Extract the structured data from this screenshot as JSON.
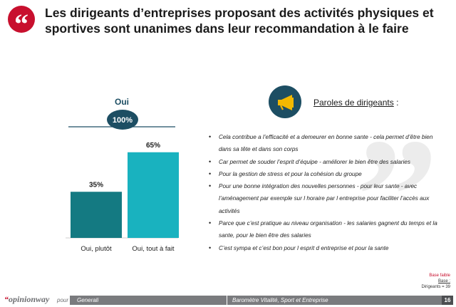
{
  "header": {
    "quote_mark": "“",
    "title": "Les dirigeants d’entreprises proposant des activités physiques et sportives sont unanimes dans leur recommandation à le faire"
  },
  "chart_data": {
    "type": "bar",
    "group_label": "Oui",
    "total_label": "100%",
    "total_value": 100,
    "categories": [
      "Oui, plutôt",
      "Oui, tout à fait"
    ],
    "values": [
      35,
      65
    ],
    "value_labels": [
      "35%",
      "65%"
    ],
    "colors": [
      "#147a82",
      "#19b2bf"
    ],
    "ylim": [
      0,
      100
    ]
  },
  "verbatims": {
    "title": "Paroles de dirigeants",
    "title_suffix": " :",
    "quote_deco": "”",
    "items": [
      "Cela contribue a l’efficacité et a demeurer en bonne sante - cela permet d’être bien dans sa tête et dans son corps",
      "Car permet de souder l’esprit d’équipe - améliorer le bien être des salaries",
      "Pour la gestion de stress et pour la cohésion du groupe",
      "Pour une bonne intégration des nouvelles personnes - pour leur sante - avec l’aménagement par exemple sur l horaire par l entreprise pour faciliter l’accès aux activités",
      "Parce que c’est pratique au niveau organisation - les salaries gagnent du temps et la sante, pour le bien être des salaries",
      "C’est sympa et c’est bon pour l esprit d entreprise et pour la sante"
    ]
  },
  "base_note": {
    "warning": "Base faible",
    "label": "Base :",
    "value": "Dirigeants = 39"
  },
  "footer": {
    "logo_quote": "“",
    "logo": "opinionway",
    "pour": "pour",
    "client": "Generali",
    "study": "Baromètre Vitalité, Sport et Entreprise",
    "page": "16"
  },
  "colors": {
    "accent_red": "#c8102e",
    "dark_teal": "#1d4e63",
    "mid_teal": "#147a82",
    "light_teal": "#19b2bf"
  },
  "icons": {
    "speaker": "megaphone-icon"
  }
}
